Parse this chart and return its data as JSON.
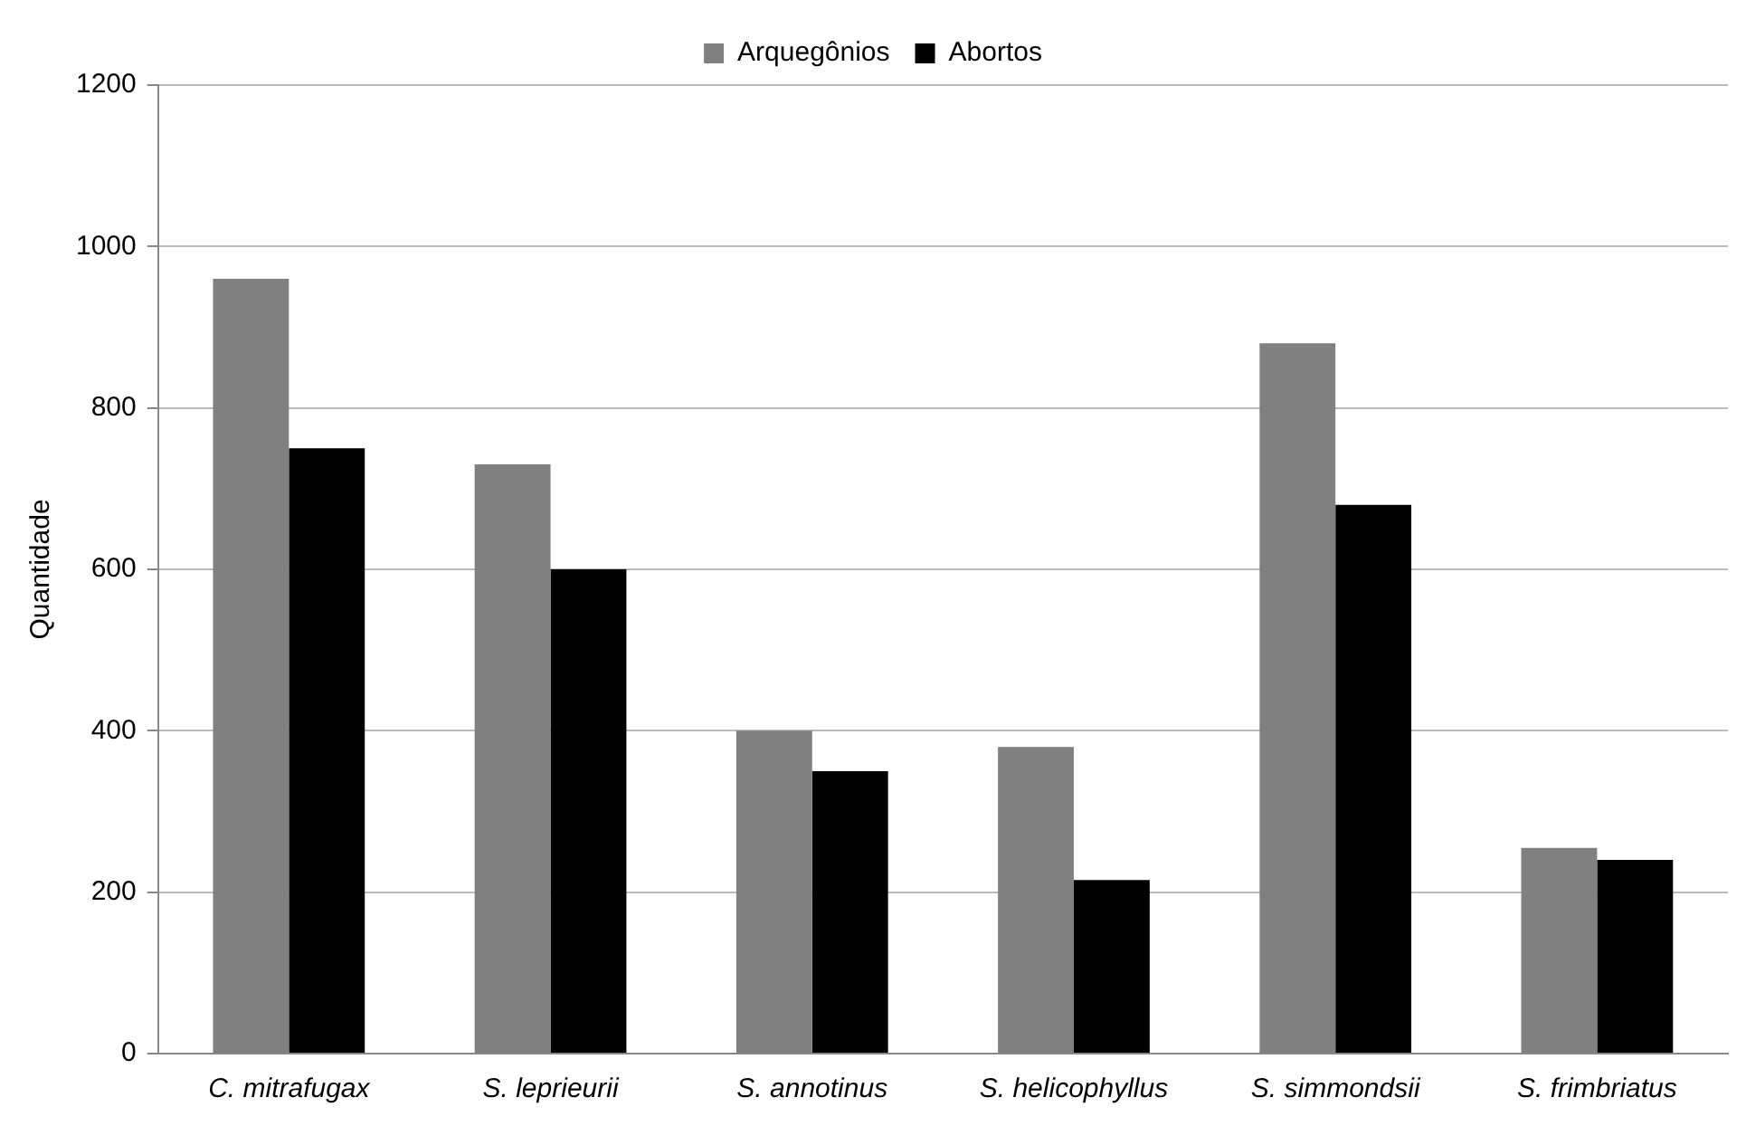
{
  "chart_data": {
    "type": "bar",
    "ylabel": "Quantidade",
    "categories": [
      "C. mitrafugax",
      "S. leprieurii",
      "S. annotinus",
      "S. helicophyllus",
      "S. simmondsii",
      "S. frimbriatus"
    ],
    "series": [
      {
        "name": "Arquegônios",
        "color": "#808080",
        "values": [
          960,
          730,
          400,
          380,
          880,
          255
        ]
      },
      {
        "name": "Abortos",
        "color": "#000000",
        "values": [
          750,
          600,
          350,
          215,
          680,
          240
        ]
      }
    ],
    "ylim": [
      0,
      1200
    ],
    "yticks": [
      0,
      200,
      400,
      600,
      800,
      1000,
      1200
    ],
    "grid": "y",
    "legend": "top"
  }
}
